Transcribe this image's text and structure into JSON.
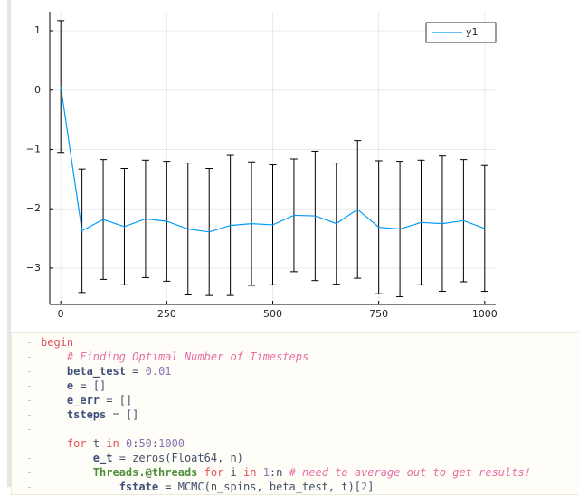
{
  "chart_data": {
    "type": "line",
    "x": [
      0,
      50,
      100,
      150,
      200,
      250,
      300,
      350,
      400,
      450,
      500,
      550,
      600,
      650,
      700,
      750,
      800,
      850,
      900,
      950,
      1000
    ],
    "series": [
      {
        "name": "y1",
        "color": "#009af9",
        "values": [
          0.06,
          -2.37,
          -2.18,
          -2.3,
          -2.17,
          -2.21,
          -2.34,
          -2.39,
          -2.28,
          -2.25,
          -2.27,
          -2.11,
          -2.12,
          -2.25,
          -2.01,
          -2.31,
          -2.34,
          -2.23,
          -2.25,
          -2.2,
          -2.33
        ],
        "errors": [
          1.11,
          1.04,
          1.01,
          0.98,
          0.99,
          1.01,
          1.11,
          1.07,
          1.18,
          1.04,
          1.01,
          0.95,
          1.09,
          1.02,
          1.16,
          1.12,
          1.14,
          1.05,
          1.14,
          1.03,
          1.06
        ]
      }
    ],
    "xlim": [
      -26,
      1026
    ],
    "ylim": [
      -3.61,
      1.32
    ],
    "xticks": [
      0,
      250,
      500,
      750,
      1000
    ],
    "yticks": [
      {
        "value": -3,
        "label": "−3"
      },
      {
        "value": -2,
        "label": "−2"
      },
      {
        "value": -1,
        "label": "−1"
      },
      0,
      1
    ],
    "grid": true,
    "legend": "top-right"
  },
  "code": {
    "lines": [
      "begin",
      "    # Finding Optimal Number of Timesteps",
      "    beta_test = 0.01",
      "    e = []",
      "    e_err = []",
      "    tsteps = []",
      null,
      "    for t in 0:50:1000",
      "        e_t = zeros(Float64, n)",
      "        Threads.@threads for i in 1:n # need to average out to get results!",
      "            fstate = MCMC(n_spins, beta_test, t)[2]"
    ]
  }
}
